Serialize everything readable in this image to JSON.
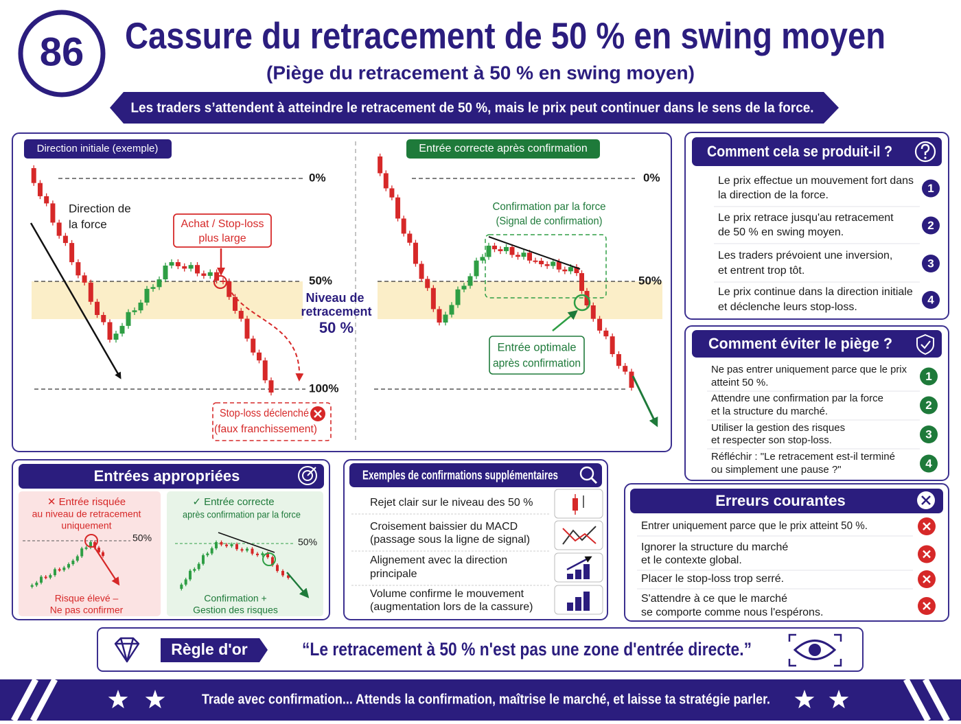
{
  "header": {
    "badge": "86",
    "title": "Cassure du retracement de 50 % en swing moyen",
    "subtitle": "(Piège du retracement à 50 % en swing moyen)",
    "banner": "Les traders s’attendent à atteindre le retracement de 50 %, mais le prix peut continuer dans le sens de la force."
  },
  "left_chart": {
    "tag": "Direction initiale (exemple)",
    "levels": [
      "0%",
      "50%",
      "100%"
    ],
    "force_label": [
      "Direction de",
      "la force"
    ],
    "entry_callout": [
      "Achat / Stop-loss",
      "plus large"
    ],
    "zone_label": [
      "Niveau de",
      "retracement",
      "50 %"
    ],
    "stop_callout": [
      "Stop-loss déclenché",
      "(faux franchissement)"
    ]
  },
  "right_chart": {
    "tag": "Entrée correcte après confirmation",
    "levels": [
      "0%",
      "50%"
    ],
    "confirm_label": [
      "Confirmation par la force",
      "(Signal de confirmation)"
    ],
    "entry_label": [
      "Entrée optimale",
      "après confirmation"
    ]
  },
  "how": {
    "title": "Comment cela se produit-il ?",
    "steps": [
      {
        "number": "1",
        "lines": [
          "Le prix effectue un mouvement fort dans",
          "la direction de la force."
        ]
      },
      {
        "number": "2",
        "lines": [
          "Le prix retrace jusqu'au retracement",
          "de 50 % en swing moyen."
        ]
      },
      {
        "number": "3",
        "lines": [
          "Les traders prévoient une inversion,",
          "et entrent trop tôt."
        ]
      },
      {
        "number": "4",
        "lines": [
          "Le prix continue dans la direction initiale",
          "et déclenche leurs stop-loss."
        ]
      }
    ]
  },
  "avoid": {
    "title": "Comment éviter le piège ?",
    "steps": [
      {
        "number": "1",
        "lines": [
          "Ne pas entrer uniquement parce que le prix",
          "atteint 50 %."
        ]
      },
      {
        "number": "2",
        "lines": [
          "Attendre une confirmation par la force",
          "et la structure du marché."
        ]
      },
      {
        "number": "3",
        "lines": [
          "Utiliser la gestion des risques",
          "et respecter son stop-loss."
        ]
      },
      {
        "number": "4",
        "lines": [
          "Réfléchir : \"Le retracement est-il terminé",
          "ou simplement une pause ?\""
        ]
      }
    ]
  },
  "entries": {
    "title": "Entrées appropriées",
    "risky": {
      "lines": [
        "✕ Entrée risquée",
        "au niveau de retracement",
        "uniquement"
      ],
      "level": "50%",
      "footer": [
        "Risque élevé –",
        "Ne pas confirmer"
      ]
    },
    "correct": {
      "lines": [
        "✓ Entrée correcte",
        "après confirmation par la force"
      ],
      "level": "50%",
      "footer": [
        "Confirmation +",
        "Gestion des risques"
      ]
    }
  },
  "examples": {
    "title": "Exemples de confirmations supplémentaires",
    "items": [
      [
        "Rejet clair sur le niveau des 50 %"
      ],
      [
        "Croisement baissier du MACD",
        "(passage sous la ligne de signal)"
      ],
      [
        "Alignement avec la direction",
        "principale"
      ],
      [
        "Volume confirme le mouvement",
        "(augmentation lors de la cassure)"
      ]
    ]
  },
  "errors": {
    "title": "Erreurs courantes",
    "items": [
      [
        "Entrer uniquement parce que le prix atteint 50 %."
      ],
      [
        "Ignorer la structure du marché",
        "et le contexte global."
      ],
      [
        "Placer le stop-loss trop serré."
      ],
      [
        "S'attendre à ce que le marché",
        "se comporte comme nous l'espérons."
      ]
    ]
  },
  "rule": {
    "label": "Règle d'or",
    "quote": "“Le retracement à 50 % n'est pas une zone d'entrée directe.”"
  },
  "footer": "Trade avec confirmation... Attends la confirmation, maîtrise le marché, et laisse ta stratégie parler."
}
